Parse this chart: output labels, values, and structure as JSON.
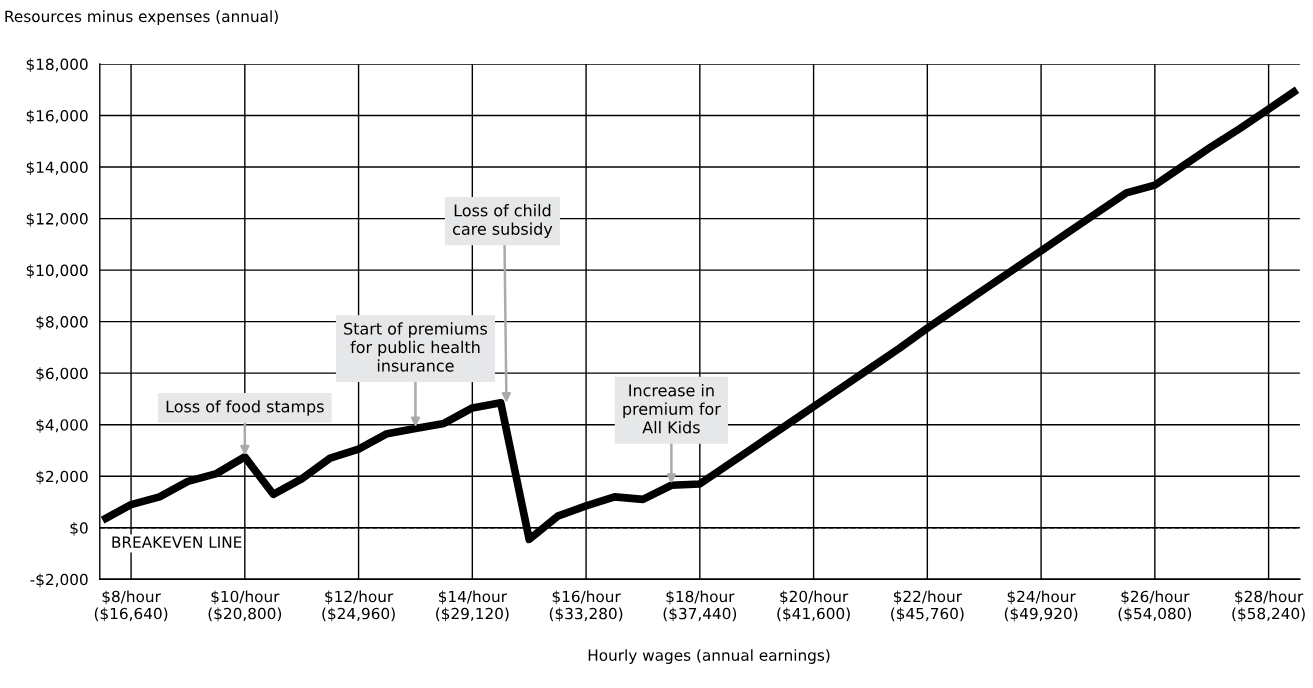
{
  "chart_data": {
    "type": "line",
    "ylabel": "Resources minus expenses (annual)",
    "xlabel": "Hourly wages (annual earnings)",
    "categories": [
      null,
      "$8/hour\n($16,640)",
      null,
      null,
      null,
      "$10/hour\n($20,800)",
      null,
      null,
      null,
      "$12/hour\n($24,960)",
      null,
      null,
      null,
      "$14/hour\n($29,120)",
      null,
      null,
      null,
      "$16/hour\n($33,280)",
      null,
      null,
      null,
      "$18/hour\n($37,440)",
      null,
      null,
      null,
      "$20/hour\n($41,600)",
      null,
      null,
      null,
      "$22/hour\n($45,760)",
      null,
      null,
      null,
      "$24/hour\n($49,920)",
      null,
      null,
      null,
      "$26/hour\n($54,080)",
      null,
      null,
      null,
      "$28/hour\n($58,240)",
      null
    ],
    "series": [
      {
        "color": "#000000",
        "values": [
          300,
          900,
          1200,
          1800,
          2100,
          2750,
          1300,
          1900,
          2700,
          3050,
          3650,
          3850,
          4050,
          4650,
          4850,
          -450,
          450,
          850,
          1200,
          1100,
          1650,
          1700,
          2450,
          3200,
          3950,
          4700,
          5450,
          6200,
          6950,
          7750,
          8500,
          9250,
          10000,
          10750,
          11500,
          12250,
          13000,
          13300,
          14050,
          14800,
          15500,
          16250,
          17000
        ]
      }
    ],
    "ylim": [
      -2000,
      18000
    ],
    "yticks": [
      {
        "value": -2000,
        "label": "-$2,000"
      },
      {
        "value": 0,
        "label": "$0"
      },
      {
        "value": 2000,
        "label": "$2,000"
      },
      {
        "value": 4000,
        "label": "$4,000"
      },
      {
        "value": 6000,
        "label": "$6,000"
      },
      {
        "value": 8000,
        "label": "$8,000"
      },
      {
        "value": 10000,
        "label": "$10,000"
      },
      {
        "value": 12000,
        "label": "$12,000"
      },
      {
        "value": 14000,
        "label": "$14,000"
      },
      {
        "value": 16000,
        "label": "$16,000"
      },
      {
        "value": 18000,
        "label": "$18,000"
      }
    ],
    "grid": true,
    "legend": false,
    "marker": "none",
    "line_style": "solid",
    "ref_lines": [
      {
        "axis": "y",
        "value": 0,
        "label": "BREAKEVEN LINE",
        "color": "#000000",
        "line_style": "dashed"
      }
    ],
    "annotations": [
      {
        "text": "Loss of food stamps",
        "y": 2750
      },
      {
        "text": "Start of premiums\nfor public health\ninsurance",
        "y": 3850
      },
      {
        "text": "Loss of child\ncare subsidy",
        "y": 4800
      },
      {
        "text": "Increase in\npremium for\nAll Kids",
        "y": 1650
      }
    ]
  }
}
